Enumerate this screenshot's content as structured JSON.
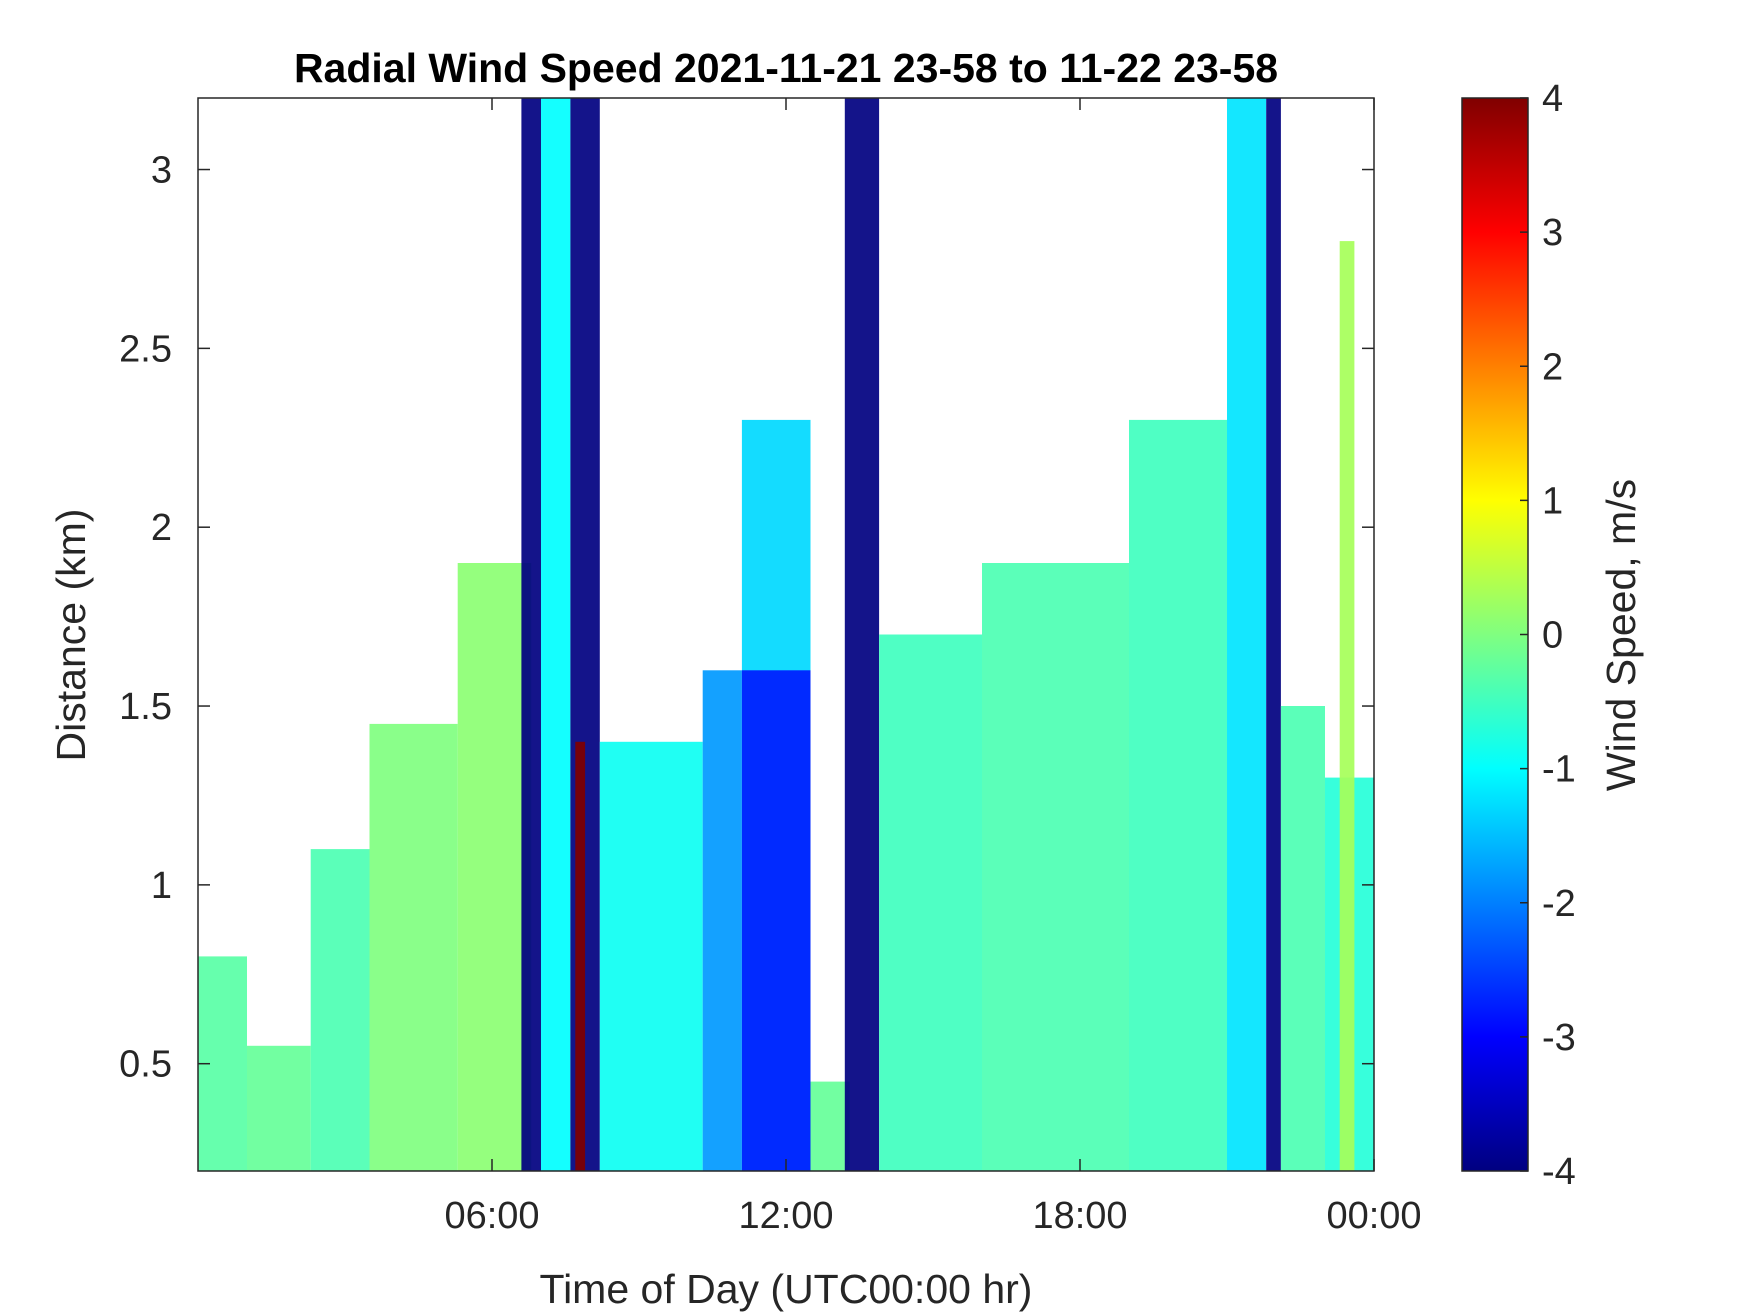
{
  "chart_data": {
    "type": "heatmap",
    "title": "Radial Wind Speed 2021-11-21 23-58 to 11-22 23-58",
    "xlabel": "Time of Day (UTC00:00 hr)",
    "ylabel": "Distance (km)",
    "xlim": [
      0,
      24
    ],
    "ylim": [
      0.2,
      3.2
    ],
    "x_ticks": [
      6,
      12,
      18,
      24
    ],
    "x_tick_labels": [
      "06:00",
      "12:00",
      "18:00",
      "00:00"
    ],
    "y_ticks": [
      0.5,
      1,
      1.5,
      2,
      2.5,
      3
    ],
    "y_tick_labels": [
      "0.5",
      "1",
      "1.5",
      "2",
      "2.5",
      "3"
    ],
    "colorbar": {
      "label": "Wind Speed, m/s",
      "range": [
        -4,
        4
      ],
      "ticks": [
        -4,
        -3,
        -2,
        -1,
        0,
        1,
        2,
        3,
        4
      ],
      "tick_labels": [
        "-4",
        "-3",
        "-2",
        "-1",
        "0",
        "1",
        "2",
        "3",
        "4"
      ],
      "colormap": "jet"
    },
    "grid": false,
    "summary": [
      {
        "x_start": 0.0,
        "x_end": 1.0,
        "max_distance_km": 0.8,
        "speed_ms": -0.3
      },
      {
        "x_start": 1.0,
        "x_end": 2.3,
        "max_distance_km": 0.55,
        "speed_ms": -0.2
      },
      {
        "x_start": 2.3,
        "x_end": 3.5,
        "max_distance_km": 1.1,
        "speed_ms": -0.4
      },
      {
        "x_start": 3.5,
        "x_end": 5.3,
        "max_distance_km": 1.45,
        "speed_ms": 0.0
      },
      {
        "x_start": 5.3,
        "x_end": 6.8,
        "max_distance_km": 1.9,
        "speed_ms": 0.1
      },
      {
        "x_start": 6.6,
        "x_end": 7.0,
        "max_distance_km": 3.2,
        "speed_ms": -4.0
      },
      {
        "x_start": 7.0,
        "x_end": 7.6,
        "max_distance_km": 3.2,
        "speed_ms": -1.0
      },
      {
        "x_start": 7.6,
        "x_end": 8.2,
        "max_distance_km": 3.2,
        "speed_ms": -4.0
      },
      {
        "x_start": 7.7,
        "x_end": 7.9,
        "max_distance_km": 1.4,
        "speed_ms": 4.0
      },
      {
        "x_start": 8.2,
        "x_end": 10.3,
        "max_distance_km": 1.4,
        "speed_ms": -0.9
      },
      {
        "x_start": 10.3,
        "x_end": 11.1,
        "max_distance_km": 1.6,
        "speed_ms": -1.8
      },
      {
        "x_start": 11.1,
        "x_end": 12.5,
        "max_distance_km": 2.3,
        "speed_ms": -1.3
      },
      {
        "x_start": 11.1,
        "x_end": 12.5,
        "max_distance_km": 1.6,
        "speed_ms": -2.8
      },
      {
        "x_start": 12.5,
        "x_end": 13.3,
        "max_distance_km": 0.45,
        "speed_ms": -0.2
      },
      {
        "x_start": 13.2,
        "x_end": 13.9,
        "max_distance_km": 3.2,
        "speed_ms": -4.0
      },
      {
        "x_start": 13.9,
        "x_end": 16.0,
        "max_distance_km": 1.7,
        "speed_ms": -0.5
      },
      {
        "x_start": 16.0,
        "x_end": 19.0,
        "max_distance_km": 1.9,
        "speed_ms": -0.4
      },
      {
        "x_start": 19.0,
        "x_end": 21.0,
        "max_distance_km": 2.3,
        "speed_ms": -0.5
      },
      {
        "x_start": 21.0,
        "x_end": 21.8,
        "max_distance_km": 3.2,
        "speed_ms": -1.2
      },
      {
        "x_start": 21.8,
        "x_end": 22.1,
        "max_distance_km": 3.2,
        "speed_ms": -4.0
      },
      {
        "x_start": 22.1,
        "x_end": 23.0,
        "max_distance_km": 1.5,
        "speed_ms": -0.4
      },
      {
        "x_start": 23.0,
        "x_end": 24.0,
        "max_distance_km": 1.3,
        "speed_ms": -0.7
      },
      {
        "x_start": 23.3,
        "x_end": 23.6,
        "max_distance_km": 2.8,
        "speed_ms": 0.3
      }
    ]
  }
}
